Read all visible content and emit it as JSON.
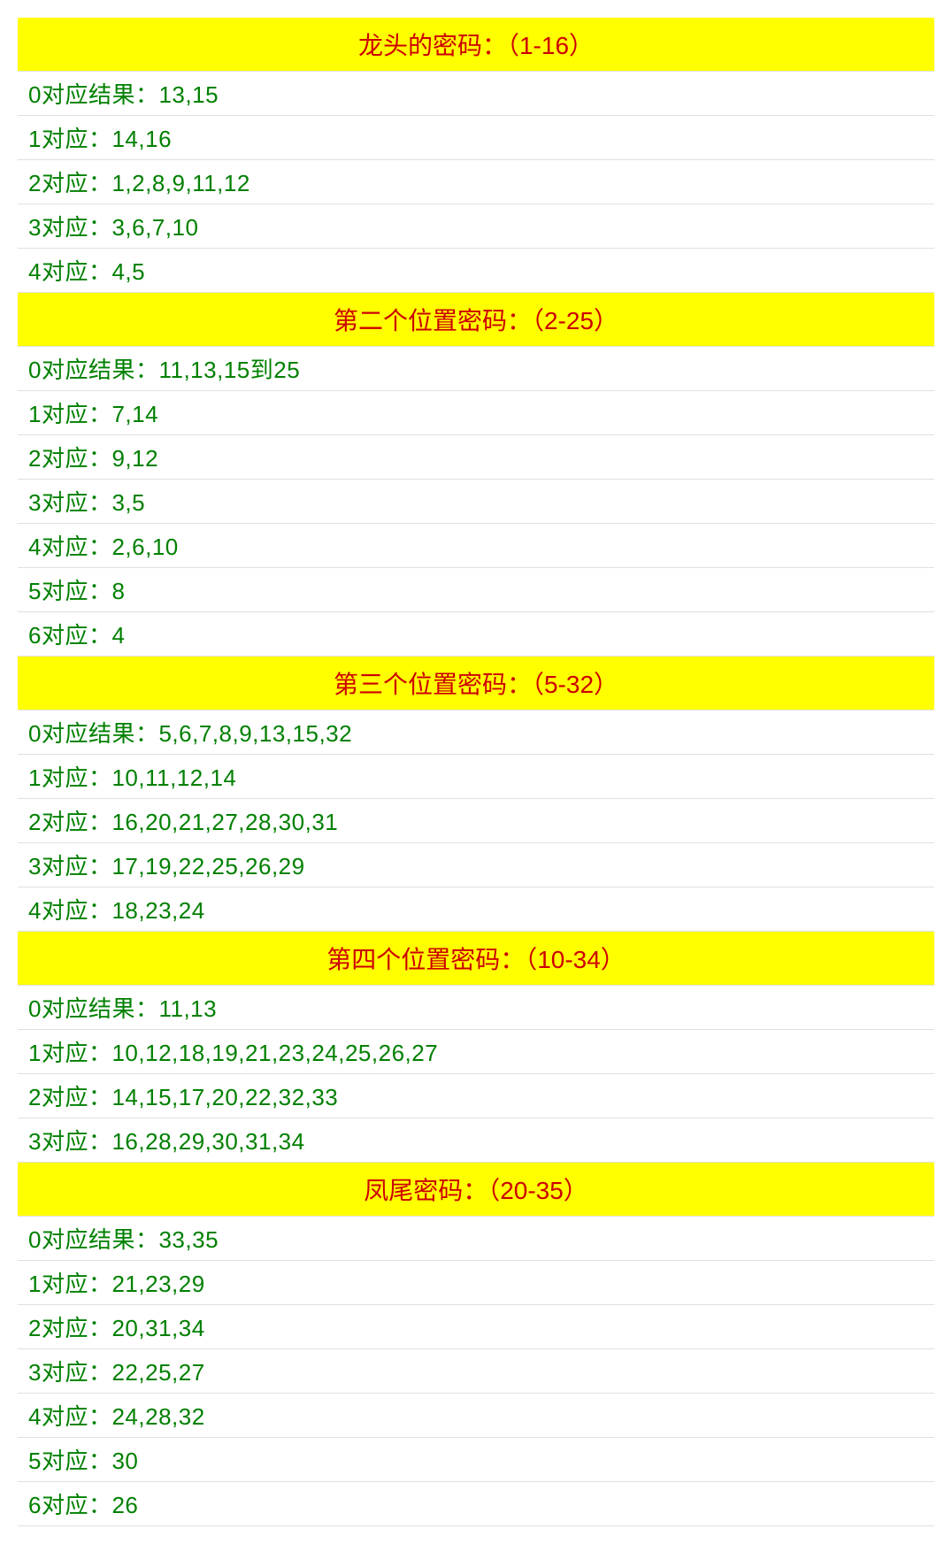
{
  "colors": {
    "header_bg": "#ffff00",
    "header_text": "#cc0000",
    "row_bg": "#ffffff",
    "row_text": "#008000",
    "border": "#e0e0e0"
  },
  "typography": {
    "header_fontsize": 28,
    "row_fontsize": 26,
    "font_family": "Microsoft YaHei"
  },
  "sections": [
    {
      "title": "龙头的密码：（1-16）",
      "rows": [
        "0对应结果：13,15",
        "1对应：14,16",
        "2对应：1,2,8,9,11,12",
        "3对应：3,6,7,10",
        "4对应：4,5"
      ]
    },
    {
      "title": "第二个位置密码：（2-25）",
      "rows": [
        "0对应结果：11,13,15到25",
        "1对应：7,14",
        "2对应：9,12",
        "3对应：3,5",
        "4对应：2,6,10",
        "5对应：8",
        "6对应：4"
      ]
    },
    {
      "title": "第三个位置密码：（5-32）",
      "rows": [
        "0对应结果：5,6,7,8,9,13,15,32",
        "1对应：10,11,12,14",
        "2对应：16,20,21,27,28,30,31",
        "3对应：17,19,22,25,26,29",
        "4对应：18,23,24"
      ]
    },
    {
      "title": "第四个位置密码：（10-34）",
      "rows": [
        "0对应结果：11,13",
        "1对应：10,12,18,19,21,23,24,25,26,27",
        "2对应：14,15,17,20,22,32,33",
        "3对应：16,28,29,30,31,34"
      ]
    },
    {
      "title": "凤尾密码：（20-35）",
      "rows": [
        "0对应结果：33,35",
        "1对应：21,23,29",
        "2对应：20,31,34",
        "3对应：22,25,27",
        "4对应：24,28,32",
        "5对应：30",
        "6对应：26"
      ]
    }
  ]
}
